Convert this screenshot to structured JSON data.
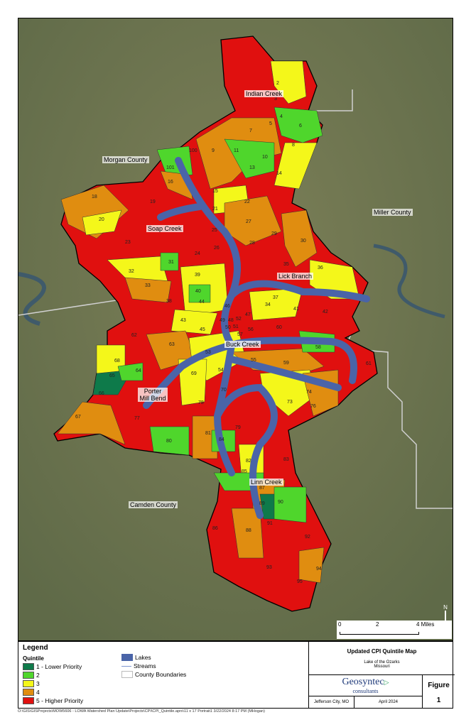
{
  "map": {
    "watershed_labels": [
      "Indian Creek",
      "Soap Creek",
      "Lick Branch",
      "Buck Creek",
      "Porter Mill Bend",
      "Linn Creek"
    ],
    "county_labels": [
      "Morgan County",
      "Miller County",
      "Camden County"
    ],
    "subwatershed_ids": [
      "2",
      "3",
      "4",
      "5",
      "6",
      "7",
      "8",
      "9",
      "10",
      "11",
      "13",
      "14",
      "15",
      "16",
      "18",
      "19",
      "20",
      "21",
      "22",
      "23",
      "24",
      "25",
      "26",
      "27",
      "28",
      "29",
      "30",
      "31",
      "32",
      "33",
      "34",
      "35",
      "36",
      "37",
      "38",
      "39",
      "40",
      "41",
      "42",
      "43",
      "44",
      "45",
      "46",
      "47",
      "48",
      "49",
      "50",
      "51",
      "52",
      "53",
      "54",
      "55",
      "56",
      "57",
      "58",
      "59",
      "60",
      "61",
      "62",
      "63",
      "64",
      "65",
      "66",
      "67",
      "68",
      "69",
      "70",
      "73",
      "74",
      "76",
      "77",
      "78",
      "79",
      "80",
      "81",
      "82",
      "83",
      "84",
      "85",
      "86",
      "87",
      "88",
      "89",
      "90",
      "91",
      "92",
      "93",
      "94",
      "95",
      "100",
      "101"
    ],
    "scale_bar": {
      "ticks": [
        "0",
        "2",
        "4 Miles"
      ]
    },
    "north_arrow": "N"
  },
  "legend": {
    "title": "Legend",
    "quintile_heading": "Quintile",
    "quintiles": [
      {
        "label": "1 - Lower Priority",
        "color": "#0e7a4a"
      },
      {
        "label": "2",
        "color": "#4fd62c"
      },
      {
        "label": "3",
        "color": "#f4f71a"
      },
      {
        "label": "4",
        "color": "#e08d10"
      },
      {
        "label": "5 - Higher Priority",
        "color": "#e0100f"
      }
    ],
    "other": [
      {
        "label": "Lakes",
        "color": "#4a64a8"
      },
      {
        "label": "Streams",
        "color": "#7f97d0"
      },
      {
        "label": "County Boundaries",
        "color": "#cccccc"
      }
    ]
  },
  "title_block": {
    "title": "Updated CPI Quintile Map",
    "subtitle1": "Lake of the Ozarks",
    "subtitle2": "Missouri",
    "company": "Geosyntec",
    "company_sub": "consultants",
    "figure_label": "Figure",
    "figure_number": "1",
    "location": "Jefferson City, MO",
    "date": "April 2024"
  },
  "file_path": "O:\\GIS\\GISProjects\\MOW5606 - LOWA Watershed Plan Update\\Projects\\CPI\\CPI_Quintile.aprx\\11 x 17 Portrait1 3/22/2024 8:17 PM (MHogan)"
}
